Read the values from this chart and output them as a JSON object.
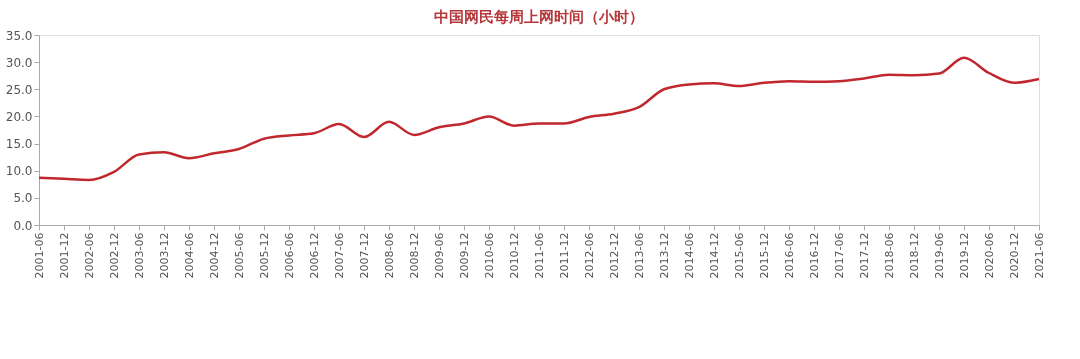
{
  "chart_data": {
    "type": "line",
    "title": "中国网民每周上网时间（小时）",
    "categories": [
      "2001-06",
      "2001-12",
      "2002-06",
      "2002-12",
      "2003-06",
      "2003-12",
      "2004-06",
      "2004-12",
      "2005-06",
      "2005-12",
      "2006-06",
      "2006-12",
      "2007-06",
      "2007-12",
      "2008-06",
      "2008-12",
      "2009-06",
      "2009-12",
      "2010-06",
      "2010-12",
      "2011-06",
      "2011-12",
      "2012-06",
      "2012-12",
      "2013-06",
      "2013-12",
      "2014-06",
      "2014-12",
      "2015-06",
      "2015-12",
      "2016-06",
      "2016-12",
      "2017-06",
      "2017-12",
      "2018-06",
      "2018-12",
      "2019-06",
      "2019-12",
      "2020-06",
      "2020-12",
      "2021-06"
    ],
    "series": [
      {
        "color": "#c0282d",
        "values": [
          8.7,
          8.5,
          8.3,
          9.8,
          13.0,
          13.4,
          12.3,
          13.2,
          14.0,
          15.9,
          16.5,
          16.9,
          18.6,
          16.2,
          19.0,
          16.6,
          18.0,
          18.7,
          20.0,
          18.3,
          18.7,
          18.7,
          19.9,
          20.5,
          21.7,
          25.0,
          25.9,
          26.1,
          25.6,
          26.2,
          26.5,
          26.4,
          26.5,
          27.0,
          27.7,
          27.6,
          27.9,
          30.8,
          28.0,
          26.2,
          26.9
        ]
      }
    ],
    "ylim": [
      0,
      35
    ],
    "yticks": [
      {
        "value": 0,
        "label": "0.0"
      },
      {
        "value": 5,
        "label": "5.0"
      },
      {
        "value": 10,
        "label": "10.0"
      },
      {
        "value": 15,
        "label": "15.0"
      },
      {
        "value": 20,
        "label": "20.0"
      },
      {
        "value": 25,
        "label": "25.0"
      },
      {
        "value": 30,
        "label": "30.0"
      },
      {
        "value": 35,
        "label": "35.0"
      }
    ],
    "grid": false,
    "marker": "none",
    "line_style": "solid"
  }
}
